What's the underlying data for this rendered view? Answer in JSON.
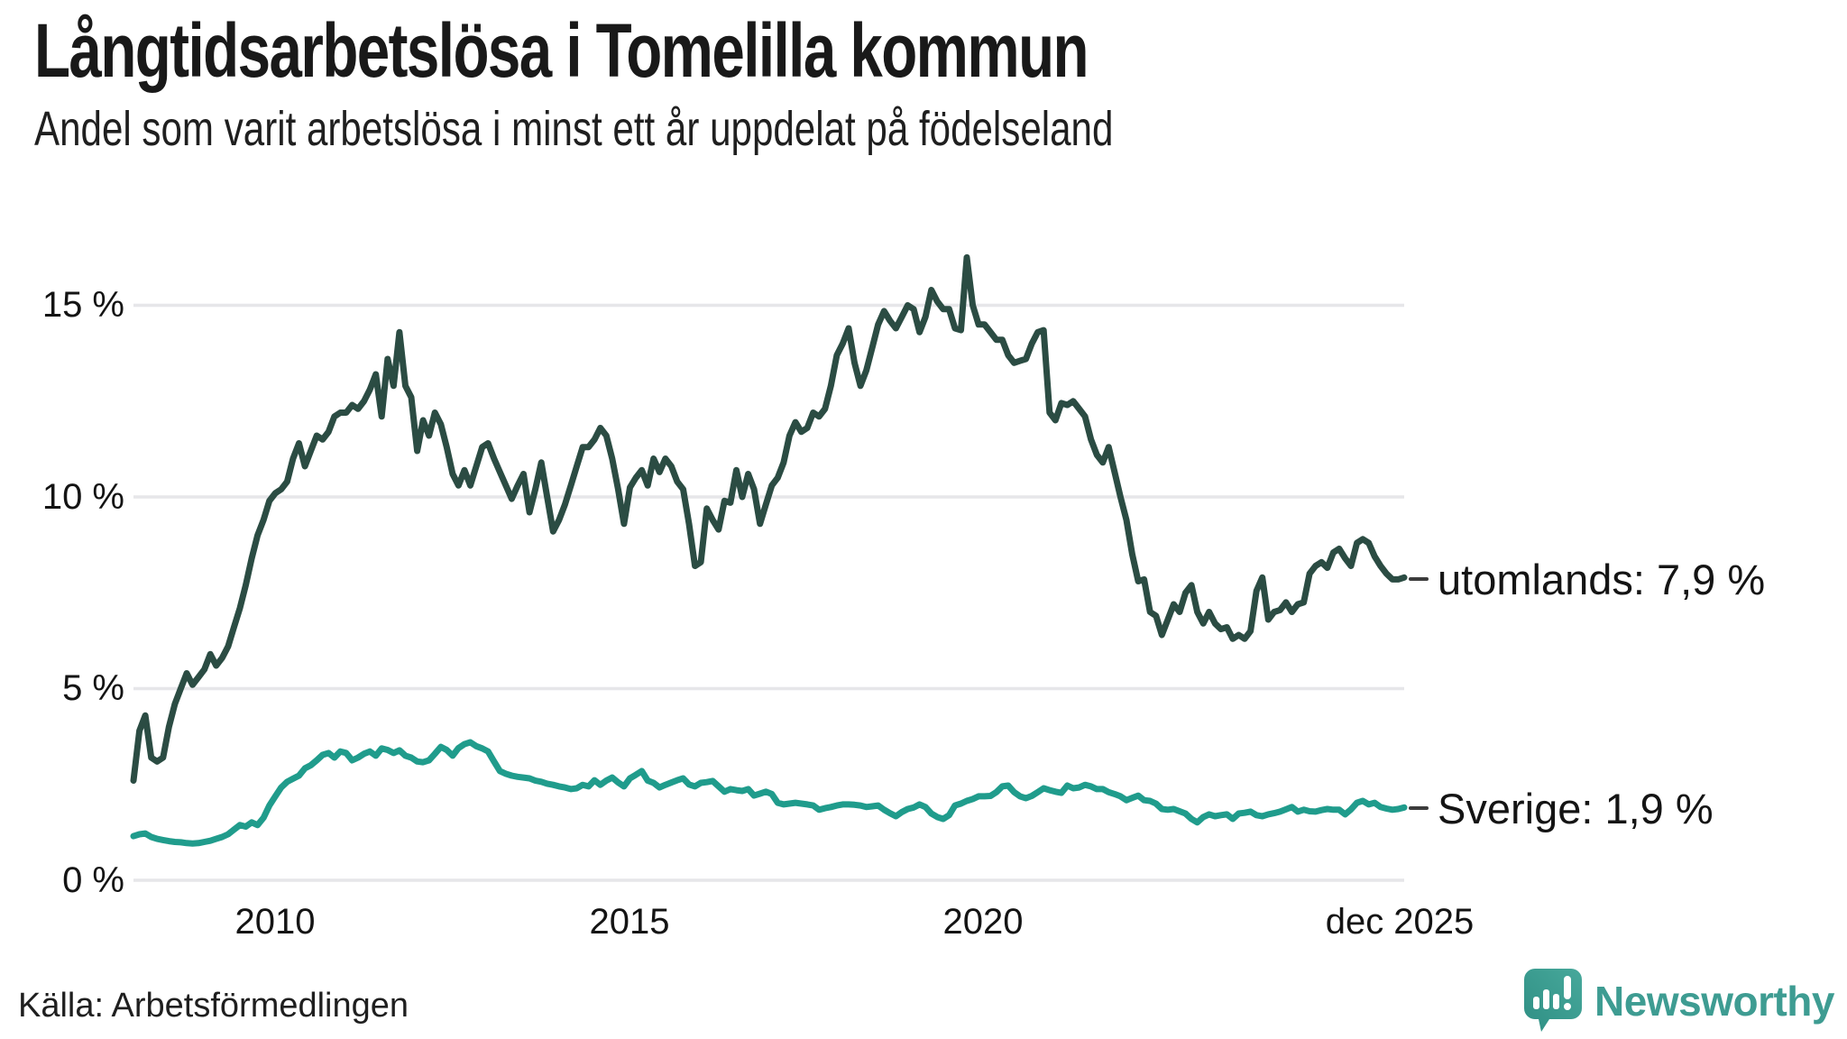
{
  "header": {
    "title": "Långtidsarbetslösa i Tomelilla kommun",
    "subtitle": "Andel som varit arbetslösa i minst ett år uppdelat på födelseland"
  },
  "chart_data": {
    "type": "line",
    "title": "Långtidsarbetslösa i Tomelilla kommun",
    "subtitle": "Andel som varit arbetslösa i minst ett år uppdelat på födelseland",
    "unit": "%",
    "grid": "horizontal-only",
    "grid_color": "#e6e6e9",
    "x_axis": {
      "frequency": "monthly",
      "start": "2008-01",
      "end": "2025-12",
      "labels": [
        "2010",
        "2015",
        "2020",
        "dec 2025"
      ],
      "label_positions_year": [
        2010,
        2015,
        2020,
        2025.92
      ]
    },
    "y_axis": {
      "labels": [
        "15 %",
        "10 %",
        "5 %",
        "0 %"
      ],
      "values": [
        15,
        10,
        5,
        0
      ],
      "range": [
        0,
        16.5
      ]
    },
    "series": [
      {
        "name": "utomlands",
        "color": "#2b4c43",
        "end_label": "utomlands: 7,9 %",
        "end_value": 7.9,
        "values": [
          2.6,
          3.9,
          4.3,
          3.2,
          3.1,
          3.2,
          4.0,
          4.6,
          5.0,
          5.4,
          5.1,
          5.3,
          5.5,
          5.9,
          5.6,
          5.8,
          6.1,
          6.6,
          7.1,
          7.7,
          8.4,
          9.0,
          9.4,
          9.9,
          10.1,
          10.2,
          10.4,
          11.0,
          11.4,
          10.8,
          11.2,
          11.6,
          11.5,
          11.7,
          12.1,
          12.2,
          12.2,
          12.4,
          12.3,
          12.5,
          12.8,
          13.2,
          12.1,
          13.6,
          12.9,
          14.3,
          12.9,
          12.6,
          11.2,
          12.0,
          11.6,
          12.2,
          11.9,
          11.3,
          10.6,
          10.3,
          10.7,
          10.3,
          10.8,
          11.3,
          11.4,
          11.0,
          10.65,
          10.3,
          9.95,
          10.3,
          10.6,
          9.6,
          10.2,
          10.9,
          10.0,
          9.1,
          9.4,
          9.8,
          10.3,
          10.8,
          11.3,
          11.3,
          11.5,
          11.8,
          11.6,
          11.0,
          10.2,
          9.3,
          10.25,
          10.5,
          10.7,
          10.3,
          11.0,
          10.65,
          11.0,
          10.8,
          10.4,
          10.2,
          9.3,
          8.2,
          8.3,
          9.7,
          9.4,
          9.15,
          9.9,
          9.85,
          10.7,
          10.0,
          10.6,
          10.2,
          9.3,
          9.8,
          10.3,
          10.5,
          10.9,
          11.6,
          11.95,
          11.7,
          11.8,
          12.2,
          12.1,
          12.3,
          12.9,
          13.7,
          14.0,
          14.4,
          13.5,
          12.9,
          13.3,
          13.9,
          14.5,
          14.85,
          14.6,
          14.4,
          14.7,
          15.0,
          14.9,
          14.3,
          14.7,
          15.4,
          15.1,
          14.9,
          14.9,
          14.4,
          14.35,
          16.25,
          15.0,
          14.5,
          14.5,
          14.3,
          14.1,
          14.1,
          13.7,
          13.5,
          13.55,
          13.6,
          14.0,
          14.3,
          14.35,
          12.2,
          12.0,
          12.45,
          12.4,
          12.5,
          12.3,
          12.1,
          11.5,
          11.1,
          10.9,
          11.3,
          10.65,
          10.0,
          9.4,
          8.5,
          7.8,
          7.85,
          7.0,
          6.9,
          6.4,
          6.8,
          7.2,
          7.0,
          7.5,
          7.7,
          7.0,
          6.7,
          7.0,
          6.7,
          6.55,
          6.6,
          6.3,
          6.4,
          6.3,
          6.5,
          7.55,
          7.9,
          6.8,
          7.0,
          7.05,
          7.25,
          7.0,
          7.2,
          7.25,
          8.0,
          8.2,
          8.3,
          8.15,
          8.55,
          8.65,
          8.4,
          8.2,
          8.8,
          8.9,
          8.8,
          8.45,
          8.2,
          8.0,
          7.85,
          7.85,
          7.9
        ]
      },
      {
        "name": "Sverige",
        "color": "#209c8c",
        "end_label": "Sverige: 1,9 %",
        "end_value": 1.9,
        "values": [
          1.15,
          1.2,
          1.22,
          1.13,
          1.08,
          1.05,
          1.02,
          1.0,
          0.99,
          0.97,
          0.96,
          0.97,
          1.0,
          1.03,
          1.08,
          1.13,
          1.2,
          1.32,
          1.44,
          1.4,
          1.51,
          1.44,
          1.63,
          1.95,
          2.19,
          2.42,
          2.57,
          2.65,
          2.73,
          2.92,
          3.0,
          3.13,
          3.27,
          3.32,
          3.2,
          3.36,
          3.32,
          3.13,
          3.2,
          3.3,
          3.36,
          3.25,
          3.44,
          3.4,
          3.32,
          3.39,
          3.25,
          3.2,
          3.1,
          3.08,
          3.13,
          3.3,
          3.48,
          3.4,
          3.25,
          3.45,
          3.55,
          3.6,
          3.5,
          3.44,
          3.36,
          3.1,
          2.85,
          2.78,
          2.73,
          2.7,
          2.68,
          2.66,
          2.6,
          2.57,
          2.52,
          2.49,
          2.45,
          2.42,
          2.38,
          2.4,
          2.49,
          2.45,
          2.61,
          2.49,
          2.6,
          2.68,
          2.55,
          2.45,
          2.66,
          2.75,
          2.85,
          2.6,
          2.54,
          2.42,
          2.49,
          2.55,
          2.61,
          2.66,
          2.5,
          2.45,
          2.54,
          2.56,
          2.59,
          2.45,
          2.31,
          2.38,
          2.35,
          2.33,
          2.38,
          2.21,
          2.26,
          2.31,
          2.25,
          2.02,
          1.98,
          2.0,
          2.02,
          2.0,
          1.98,
          1.95,
          1.84,
          1.88,
          1.91,
          1.95,
          1.98,
          1.98,
          1.97,
          1.95,
          1.91,
          1.93,
          1.95,
          1.84,
          1.75,
          1.67,
          1.78,
          1.86,
          1.9,
          1.98,
          1.91,
          1.74,
          1.65,
          1.6,
          1.7,
          1.95,
          2.0,
          2.07,
          2.12,
          2.19,
          2.19,
          2.2,
          2.3,
          2.45,
          2.47,
          2.3,
          2.19,
          2.14,
          2.2,
          2.3,
          2.4,
          2.35,
          2.31,
          2.28,
          2.47,
          2.4,
          2.42,
          2.49,
          2.45,
          2.38,
          2.38,
          2.3,
          2.25,
          2.19,
          2.09,
          2.15,
          2.21,
          2.09,
          2.07,
          2.0,
          1.86,
          1.84,
          1.86,
          1.8,
          1.74,
          1.6,
          1.51,
          1.65,
          1.72,
          1.67,
          1.7,
          1.72,
          1.6,
          1.74,
          1.76,
          1.79,
          1.7,
          1.67,
          1.72,
          1.75,
          1.79,
          1.85,
          1.91,
          1.79,
          1.84,
          1.8,
          1.79,
          1.83,
          1.86,
          1.84,
          1.84,
          1.72,
          1.85,
          2.02,
          2.07,
          1.98,
          2.02,
          1.91,
          1.87,
          1.84,
          1.86,
          1.9
        ]
      }
    ]
  },
  "footer": {
    "source": "Källa: Arbetsförmedlingen",
    "brand": "Newsworthy",
    "brand_color": "#3e9c92"
  }
}
